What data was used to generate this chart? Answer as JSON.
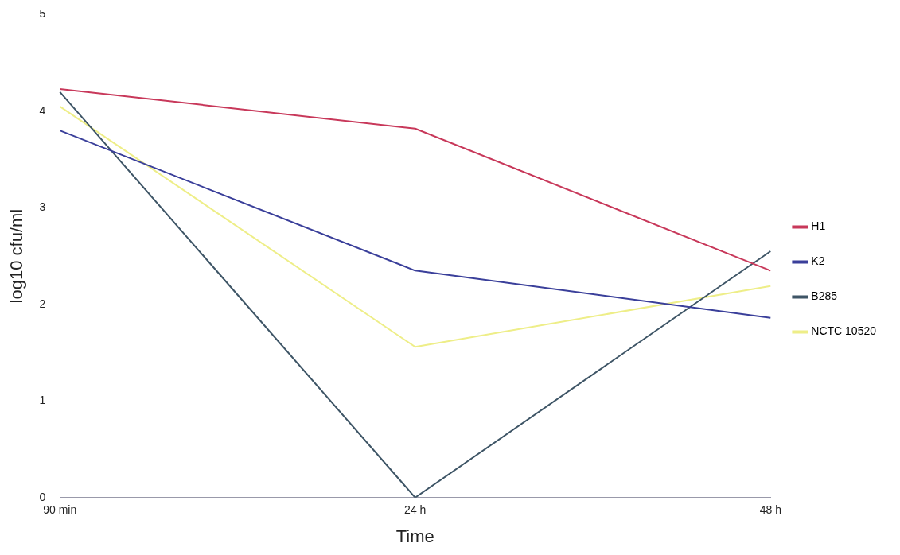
{
  "chart_data": {
    "type": "line",
    "xlabel": "Time",
    "ylabel": "log10 cfu/ml",
    "categories": [
      "90 min",
      "24 h",
      "48 h"
    ],
    "series": [
      {
        "name": "H1",
        "color": "#c8385a",
        "values": [
          4.23,
          3.82,
          2.35
        ]
      },
      {
        "name": "K2",
        "color": "#3a3f9a",
        "values": [
          3.8,
          2.35,
          1.86
        ]
      },
      {
        "name": "B285",
        "color": "#3e5566",
        "values": [
          4.2,
          0,
          2.55
        ]
      },
      {
        "name": "NCTC 10520",
        "color": "#eeee88",
        "values": [
          4.05,
          1.56,
          2.19
        ]
      }
    ],
    "ylim": [
      0,
      5
    ],
    "yticks": [
      0,
      1,
      2,
      3,
      4,
      5
    ],
    "grid": false,
    "legend": "right",
    "marker": "none",
    "line_style": "solid"
  }
}
